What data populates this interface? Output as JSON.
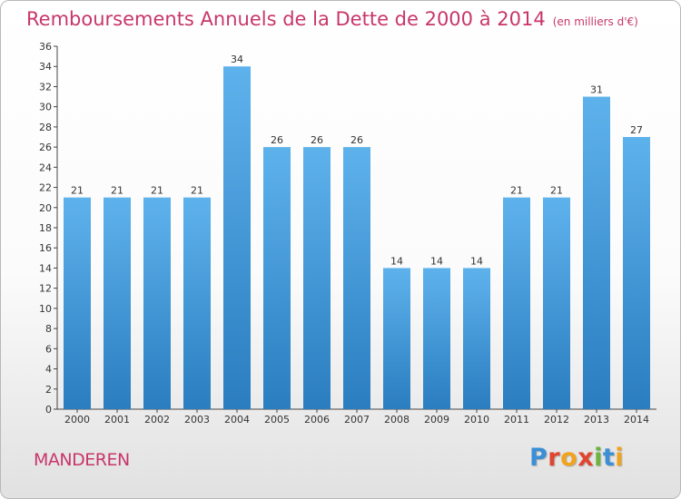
{
  "chart_data": {
    "type": "bar",
    "title": "Remboursements Annuels de la Dette de 2000 à 2014",
    "unit": "(en milliers d'€)",
    "categories": [
      "2000",
      "2001",
      "2002",
      "2003",
      "2004",
      "2005",
      "2006",
      "2007",
      "2008",
      "2009",
      "2010",
      "2011",
      "2012",
      "2013",
      "2014"
    ],
    "values": [
      21,
      21,
      21,
      21,
      34,
      26,
      26,
      26,
      14,
      14,
      14,
      21,
      21,
      31,
      27
    ],
    "ylim": [
      0,
      36
    ],
    "yticks": [
      0,
      2,
      4,
      6,
      8,
      10,
      12,
      14,
      16,
      18,
      20,
      22,
      24,
      26,
      28,
      30,
      32,
      34,
      36
    ],
    "grid": false,
    "colors": {
      "bar_top": "#5eb2ec",
      "bar_bottom": "#2a7dbf",
      "text": "#c8366a"
    }
  },
  "footer": {
    "commune": "MANDEREN",
    "logo": [
      "P",
      "r",
      "o",
      "x",
      "i",
      "t",
      "i"
    ],
    "logo_colors": [
      "#3a8fd6",
      "#e0452f",
      "#f2a31c",
      "#e0452f",
      "#6cb33f",
      "#3a8fd6",
      "#f2a31c"
    ]
  }
}
